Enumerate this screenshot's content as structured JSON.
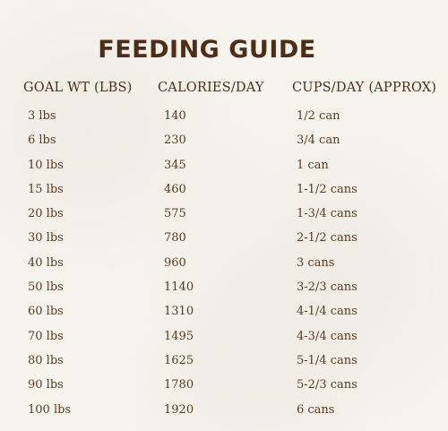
{
  "title": "FEEDING GUIDE",
  "headers": {
    "goal": "GOAL WT (LBS)",
    "calories": "CALORIES/DAY",
    "cups": "CUPS/DAY (APPROX)"
  },
  "rows": [
    {
      "goal": "3 lbs",
      "calories": "140",
      "cups": "1/2 can"
    },
    {
      "goal": "6 lbs",
      "calories": "230",
      "cups": "3/4 can"
    },
    {
      "goal": "10 lbs",
      "calories": "345",
      "cups": "1 can"
    },
    {
      "goal": "15 lbs",
      "calories": "460",
      "cups": "1-1/2 cans"
    },
    {
      "goal": "20 lbs",
      "calories": "575",
      "cups": "1-3/4 cans"
    },
    {
      "goal": "30 lbs",
      "calories": "780",
      "cups": "2-1/2 cans"
    },
    {
      "goal": "40 lbs",
      "calories": "960",
      "cups": "3 cans"
    },
    {
      "goal": "50 lbs",
      "calories": "1140",
      "cups": "3-2/3 cans"
    },
    {
      "goal": "60 lbs",
      "calories": "1310",
      "cups": "4-1/4 cans"
    },
    {
      "goal": "70 lbs",
      "calories": "1495",
      "cups": "4-3/4 cans"
    },
    {
      "goal": "80 lbs",
      "calories": "1625",
      "cups": "5-1/4 cans"
    },
    {
      "goal": "90 lbs",
      "calories": "1780",
      "cups": "5-2/3 cans"
    },
    {
      "goal": "100 lbs",
      "calories": "1920",
      "cups": "6 cans"
    }
  ]
}
